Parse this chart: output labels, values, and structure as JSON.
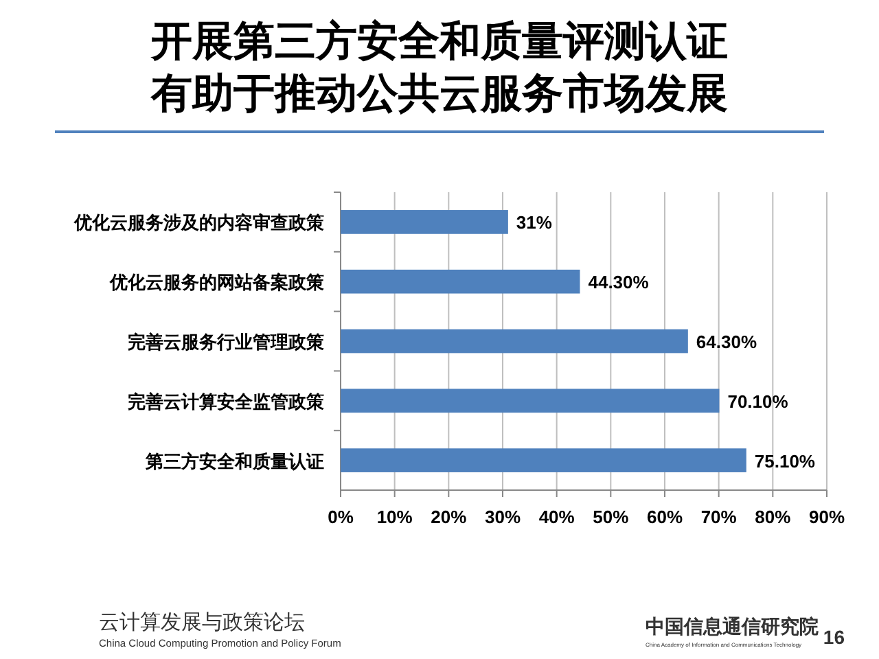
{
  "chart_data": {
    "type": "bar",
    "orientation": "horizontal",
    "title": "开展第三方安全和质量评测认证有助于推动公共云服务市场发展",
    "categories": [
      "优化云服务涉及的内容审查政策",
      "优化云服务的网站备案政策",
      "完善云服务行业管理政策",
      "完善云计算安全监管政策",
      "第三方安全和质量认证"
    ],
    "values": [
      31,
      44.3,
      64.3,
      70.1,
      75.1
    ],
    "value_labels": [
      "31%",
      "44.30%",
      "64.30%",
      "70.10%",
      "75.10%"
    ],
    "color": "#4f81bd",
    "xlim": [
      0,
      90
    ],
    "xticks": [
      {
        "value": 0,
        "label": "0%"
      },
      {
        "value": 10,
        "label": "10%"
      },
      {
        "value": 20,
        "label": "20%"
      },
      {
        "value": 30,
        "label": "30%"
      },
      {
        "value": 40,
        "label": "40%"
      },
      {
        "value": 50,
        "label": "50%"
      },
      {
        "value": 60,
        "label": "60%"
      },
      {
        "value": 70,
        "label": "70%"
      },
      {
        "value": 80,
        "label": "80%"
      },
      {
        "value": 90,
        "label": "90%"
      }
    ],
    "grid": "x",
    "annotations": [
      "云计算发展与政策论坛",
      "China Cloud Computing Promotion and Policy Forum",
      "中国信息通信研究院",
      "China Academy of Information and Communications Technology",
      "16"
    ]
  }
}
